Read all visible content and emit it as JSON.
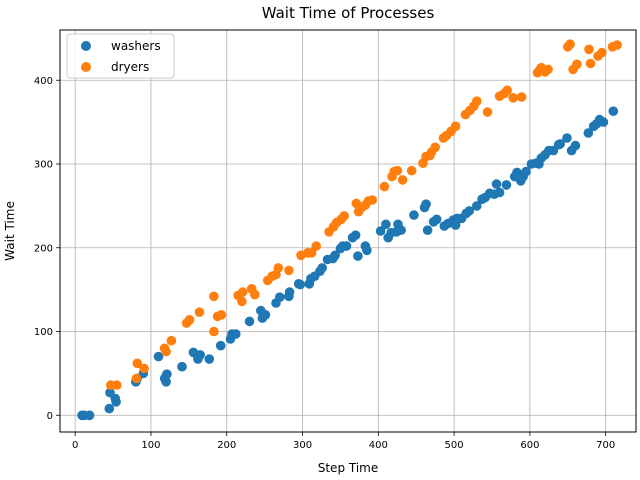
{
  "chart_data": {
    "type": "scatter",
    "title": "Wait Time of Processes",
    "xlabel": "Step Time",
    "ylabel": "Wait Time",
    "xlim": [
      -20,
      740
    ],
    "ylim": [
      -20,
      460
    ],
    "xticks": [
      0,
      100,
      200,
      300,
      400,
      500,
      600,
      700
    ],
    "yticks": [
      0,
      100,
      200,
      300,
      400
    ],
    "grid": true,
    "legend_position": "top-left",
    "series": [
      {
        "name": "washers",
        "color": "#1f77b4",
        "points": [
          [
            9,
            0
          ],
          [
            12,
            0
          ],
          [
            19,
            0
          ],
          [
            45,
            8
          ],
          [
            46,
            27
          ],
          [
            53,
            20
          ],
          [
            54,
            16
          ],
          [
            80,
            40
          ],
          [
            82,
            44
          ],
          [
            90,
            50
          ],
          [
            110,
            70
          ],
          [
            118,
            44
          ],
          [
            120,
            40
          ],
          [
            121,
            49
          ],
          [
            141,
            58
          ],
          [
            156,
            75
          ],
          [
            162,
            67
          ],
          [
            165,
            72
          ],
          [
            177,
            67
          ],
          [
            192,
            83
          ],
          [
            205,
            91
          ],
          [
            207,
            97
          ],
          [
            212,
            97
          ],
          [
            230,
            112
          ],
          [
            245,
            125
          ],
          [
            247,
            116
          ],
          [
            251,
            120
          ],
          [
            265,
            134
          ],
          [
            270,
            141
          ],
          [
            282,
            142
          ],
          [
            283,
            147
          ],
          [
            295,
            157
          ],
          [
            297,
            156
          ],
          [
            309,
            157
          ],
          [
            311,
            163
          ],
          [
            316,
            166
          ],
          [
            323,
            172
          ],
          [
            326,
            176
          ],
          [
            333,
            186
          ],
          [
            340,
            187
          ],
          [
            343,
            191
          ],
          [
            350,
            199
          ],
          [
            353,
            202
          ],
          [
            358,
            202
          ],
          [
            366,
            212
          ],
          [
            370,
            215
          ],
          [
            373,
            190
          ],
          [
            383,
            202
          ],
          [
            385,
            197
          ],
          [
            403,
            220
          ],
          [
            410,
            228
          ],
          [
            413,
            212
          ],
          [
            417,
            218
          ],
          [
            424,
            219
          ],
          [
            426,
            228
          ],
          [
            430,
            221
          ],
          [
            447,
            239
          ],
          [
            461,
            248
          ],
          [
            463,
            252
          ],
          [
            465,
            221
          ],
          [
            473,
            231
          ],
          [
            477,
            234
          ],
          [
            487,
            226
          ],
          [
            492,
            229
          ],
          [
            499,
            233
          ],
          [
            502,
            227
          ],
          [
            504,
            235
          ],
          [
            510,
            235
          ],
          [
            516,
            241
          ],
          [
            520,
            244
          ],
          [
            530,
            250
          ],
          [
            537,
            258
          ],
          [
            541,
            260
          ],
          [
            547,
            265
          ],
          [
            553,
            264
          ],
          [
            556,
            276
          ],
          [
            560,
            266
          ],
          [
            569,
            275
          ],
          [
            580,
            285
          ],
          [
            583,
            290
          ],
          [
            585,
            287
          ],
          [
            588,
            280
          ],
          [
            591,
            285
          ],
          [
            595,
            291
          ],
          [
            602,
            300
          ],
          [
            608,
            301
          ],
          [
            612,
            300
          ],
          [
            615,
            307
          ],
          [
            620,
            311
          ],
          [
            625,
            316
          ],
          [
            631,
            316
          ],
          [
            638,
            323
          ],
          [
            640,
            324
          ],
          [
            649,
            331
          ],
          [
            655,
            316
          ],
          [
            660,
            322
          ],
          [
            677,
            337
          ],
          [
            684,
            345
          ],
          [
            688,
            348
          ],
          [
            692,
            353
          ],
          [
            697,
            350
          ],
          [
            710,
            363
          ]
        ]
      },
      {
        "name": "dryers",
        "color": "#ff7f0e",
        "points": [
          [
            47,
            36
          ],
          [
            55,
            36
          ],
          [
            81,
            44
          ],
          [
            82,
            62
          ],
          [
            91,
            56
          ],
          [
            118,
            80
          ],
          [
            120,
            76
          ],
          [
            127,
            89
          ],
          [
            147,
            110
          ],
          [
            151,
            114
          ],
          [
            164,
            123
          ],
          [
            183,
            100
          ],
          [
            183,
            142
          ],
          [
            188,
            118
          ],
          [
            193,
            120
          ],
          [
            215,
            143
          ],
          [
            220,
            136
          ],
          [
            221,
            147
          ],
          [
            233,
            151
          ],
          [
            237,
            144
          ],
          [
            254,
            161
          ],
          [
            260,
            166
          ],
          [
            265,
            168
          ],
          [
            268,
            176
          ],
          [
            282,
            173
          ],
          [
            298,
            191
          ],
          [
            307,
            194
          ],
          [
            312,
            194
          ],
          [
            318,
            202
          ],
          [
            335,
            219
          ],
          [
            341,
            225
          ],
          [
            345,
            230
          ],
          [
            351,
            234
          ],
          [
            355,
            238
          ],
          [
            371,
            253
          ],
          [
            374,
            243
          ],
          [
            378,
            248
          ],
          [
            383,
            251
          ],
          [
            387,
            256
          ],
          [
            392,
            257
          ],
          [
            408,
            273
          ],
          [
            418,
            285
          ],
          [
            421,
            291
          ],
          [
            425,
            292
          ],
          [
            432,
            281
          ],
          [
            444,
            292
          ],
          [
            459,
            301
          ],
          [
            463,
            309
          ],
          [
            468,
            310
          ],
          [
            470,
            314
          ],
          [
            475,
            320
          ],
          [
            486,
            331
          ],
          [
            490,
            334
          ],
          [
            496,
            339
          ],
          [
            502,
            345
          ],
          [
            515,
            359
          ],
          [
            521,
            364
          ],
          [
            526,
            369
          ],
          [
            530,
            375
          ],
          [
            544,
            362
          ],
          [
            560,
            381
          ],
          [
            566,
            384
          ],
          [
            570,
            388
          ],
          [
            578,
            379
          ],
          [
            589,
            380
          ],
          [
            610,
            409
          ],
          [
            613,
            412
          ],
          [
            615,
            415
          ],
          [
            620,
            410
          ],
          [
            624,
            413
          ],
          [
            650,
            440
          ],
          [
            653,
            443
          ],
          [
            657,
            413
          ],
          [
            662,
            419
          ],
          [
            678,
            437
          ],
          [
            680,
            420
          ],
          [
            690,
            429
          ],
          [
            695,
            433
          ],
          [
            709,
            440
          ],
          [
            715,
            442
          ]
        ]
      }
    ]
  }
}
